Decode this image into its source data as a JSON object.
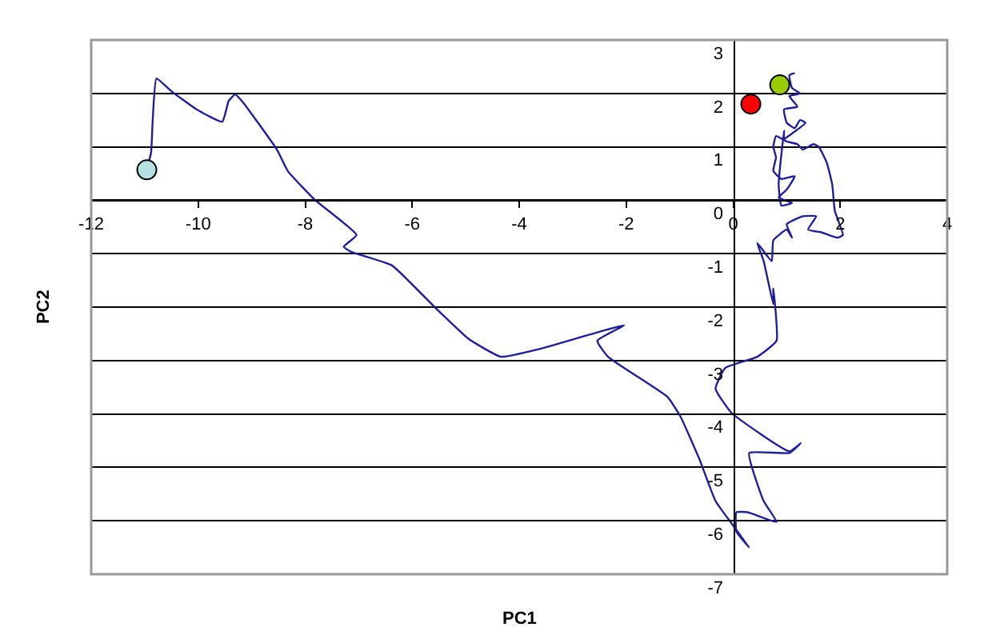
{
  "chart_data": {
    "type": "line",
    "xlabel": "PC1",
    "ylabel": "PC2",
    "xlim": [
      -12,
      4
    ],
    "ylim": [
      -7,
      3
    ],
    "xticks": [
      -12,
      -10,
      -8,
      -6,
      -4,
      -2,
      0,
      2,
      4
    ],
    "yticks": [
      -7,
      -6,
      -5,
      -4,
      -3,
      -2,
      -1,
      0,
      1,
      2,
      3
    ],
    "grid": "y",
    "marker": "none",
    "line_style": "solid",
    "series": [
      {
        "color": "#1f1f9a",
        "x": [
          -10.96,
          -10.88,
          -10.85,
          -10.78,
          -10.5,
          -10.03,
          -9.55,
          -9.43,
          -9.31,
          -9.16,
          -8.53,
          -8.32,
          -7.81,
          -7.04,
          -7.28,
          -7.13,
          -6.38,
          -5.54,
          -4.94,
          -4.34,
          -3.6,
          -2.04,
          -2.54,
          -2.34,
          -1.23,
          -0.99,
          -0.63,
          -0.33,
          -0.03,
          0.3,
          0.06,
          0.06,
          0.27,
          0.81,
          0.57,
          0.3,
          1.05,
          1.26,
          1.05,
          -0.03,
          -0.33,
          -0.15,
          0.45,
          0.81,
          0.75,
          0.75,
          0.57,
          0.45,
          0.72,
          0.75,
          1.0,
          1.1,
          1.0,
          1.3,
          1.55,
          1.4,
          1.65,
          1.95,
          2.05,
          1.9,
          1.85,
          1.75,
          1.6,
          1.5,
          1.3,
          1.2,
          1.0,
          0.8,
          0.75,
          0.8,
          0.75,
          0.9,
          1.15,
          1.0,
          0.85,
          1.1,
          0.9,
          0.85,
          0.95,
          0.95,
          1.1,
          1.35,
          1.25,
          1.15,
          1.0,
          0.95,
          1.2,
          1.05,
          1.25,
          1.1,
          1.05,
          1.15
        ],
        "values": [
          0.57,
          0.9,
          1.5,
          2.28,
          2.04,
          1.7,
          1.47,
          1.86,
          1.98,
          1.83,
          0.95,
          0.54,
          0,
          -0.65,
          -0.87,
          -0.97,
          -1.22,
          -2.04,
          -2.6,
          -2.93,
          -2.78,
          -2.34,
          -2.63,
          -2.93,
          -3.68,
          -4.04,
          -4.85,
          -5.63,
          -6.05,
          -6.5,
          -6.2,
          -5.84,
          -5.84,
          -6.02,
          -5.63,
          -4.73,
          -4.73,
          -4.55,
          -4.7,
          -3.98,
          -3.53,
          -3.14,
          -2.93,
          -2.63,
          -1.65,
          -1.95,
          -1.14,
          -0.8,
          -1.14,
          -0.75,
          -0.55,
          -0.7,
          -0.45,
          -0.3,
          -0.3,
          -0.55,
          -0.6,
          -0.7,
          -0.65,
          -0.2,
          0.3,
          0.7,
          1.0,
          1.05,
          0.95,
          1.05,
          1.1,
          1.2,
          1.0,
          0.8,
          0.55,
          0.4,
          0.45,
          0.2,
          0.05,
          -0.05,
          -0.1,
          0.3,
          1.3,
          1.15,
          1.25,
          1.45,
          1.5,
          1.35,
          1.45,
          1.7,
          1.75,
          1.95,
          2.0,
          2.1,
          2.34,
          2.38
        ]
      },
      {
        "type": "scatter",
        "marker": "circle",
        "color": "#b7e0e3",
        "x": [
          -10.96
        ],
        "values": [
          0.57
        ]
      },
      {
        "type": "scatter",
        "marker": "circle",
        "color": "#ff0000",
        "x": [
          0.33
        ],
        "values": [
          1.8
        ]
      },
      {
        "type": "scatter",
        "marker": "circle",
        "color": "#99cc00",
        "x": [
          0.87
        ],
        "values": [
          2.16
        ]
      }
    ]
  }
}
